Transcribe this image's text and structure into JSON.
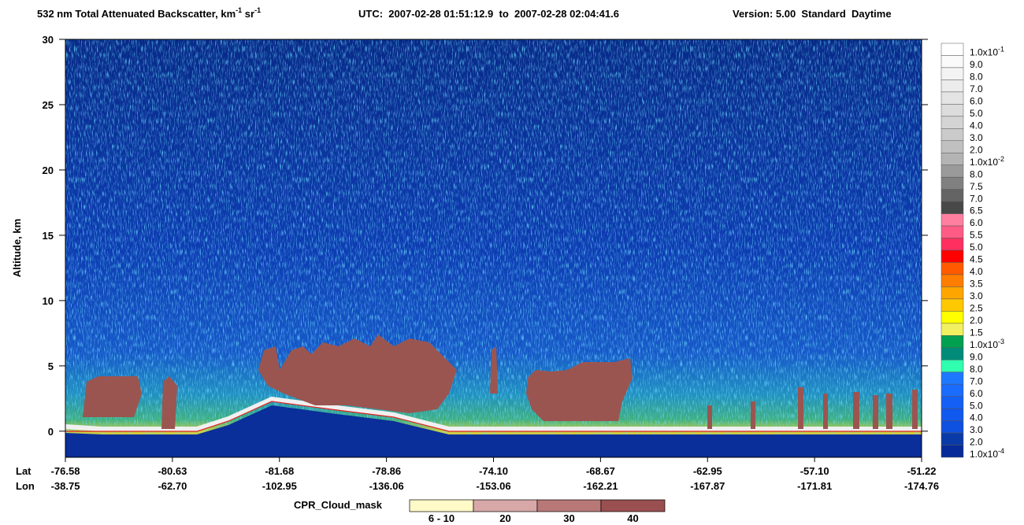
{
  "chart_data": {
    "type": "curtain",
    "title": {
      "main": "532 nm Total Attenuated Backscatter, km",
      "sup1": "-1",
      "unit2": " sr",
      "sup2": "-1",
      "time": "UTC:  2007-02-28 01:51:12.9  to  2007-02-28 02:04:41.6",
      "version": "Version: 5.00  Standard  Daytime"
    },
    "ylabel": "Altitude, km",
    "ylim": [
      -2,
      30
    ],
    "yticks": [
      0,
      5,
      10,
      15,
      20,
      25,
      30
    ],
    "x_rows": {
      "titles": [
        "Lat",
        "Lon"
      ],
      "lat": [
        "-76.58",
        "-80.63",
        "-81.68",
        "-78.86",
        "-74.10",
        "-68.67",
        "-62.95",
        "-57.10",
        "-51.22"
      ],
      "lon": [
        "-38.75",
        "-62.70",
        "-102.95",
        "-136.06",
        "-153.06",
        "-162.21",
        "-167.87",
        "-171.81",
        "-174.76"
      ]
    },
    "colorbar": [
      {
        "label": {
          "text": "1.0x10",
          "sup": "-1"
        },
        "color": "#ffffff"
      },
      {
        "label": "9.0",
        "color": "#fafafa"
      },
      {
        "label": "8.0",
        "color": "#f3f3f3"
      },
      {
        "label": "7.0",
        "color": "#ececec"
      },
      {
        "label": "6.0",
        "color": "#e4e4e4"
      },
      {
        "label": "5.0",
        "color": "#dcdcdc"
      },
      {
        "label": "4.0",
        "color": "#d4d4d4"
      },
      {
        "label": "3.0",
        "color": "#cacaca"
      },
      {
        "label": "2.0",
        "color": "#c0c0c0"
      },
      {
        "label": {
          "text": "1.0x10",
          "sup": "-2"
        },
        "color": "#b4b4b4"
      },
      {
        "label": "8.0",
        "color": "#9a9a9a"
      },
      {
        "label": "7.5",
        "color": "#808080"
      },
      {
        "label": "7.0",
        "color": "#646464"
      },
      {
        "label": "6.5",
        "color": "#484848"
      },
      {
        "label": "6.0",
        "color": "#ff7fa0"
      },
      {
        "label": "5.5",
        "color": "#ff5c85"
      },
      {
        "label": "5.0",
        "color": "#ff3060"
      },
      {
        "label": "4.5",
        "color": "#ff0000"
      },
      {
        "label": "4.0",
        "color": "#ff5a00"
      },
      {
        "label": "3.5",
        "color": "#ff7d00"
      },
      {
        "label": "3.0",
        "color": "#ffa500"
      },
      {
        "label": "2.5",
        "color": "#ffc800"
      },
      {
        "label": "2.0",
        "color": "#ffff00"
      },
      {
        "label": "1.5",
        "color": "#f0f060"
      },
      {
        "label": {
          "text": "1.0x10",
          "sup": "-3"
        },
        "color": "#00a050"
      },
      {
        "label": "9.0",
        "color": "#008c78"
      },
      {
        "label": "8.0",
        "color": "#30ffb0"
      },
      {
        "label": "7.0",
        "color": "#1e78ff"
      },
      {
        "label": "6.0",
        "color": "#1a6cff"
      },
      {
        "label": "5.0",
        "color": "#1460f5"
      },
      {
        "label": "4.0",
        "color": "#1058ee"
      },
      {
        "label": "3.0",
        "color": "#0e50e0"
      },
      {
        "label": "2.0",
        "color": "#0a3aa8"
      },
      {
        "label": {
          "text": "1.0x10",
          "sup": "-4"
        },
        "color": "#062a98"
      }
    ],
    "cpr_legend": {
      "title": "CPR_Cloud_mask",
      "items": [
        {
          "label": "6 - 10",
          "color": "#fffac8"
        },
        {
          "label": "20",
          "color": "#d8a8a8"
        },
        {
          "label": "30",
          "color": "#b87878"
        },
        {
          "label": "40",
          "color": "#9a5050"
        }
      ]
    }
  }
}
